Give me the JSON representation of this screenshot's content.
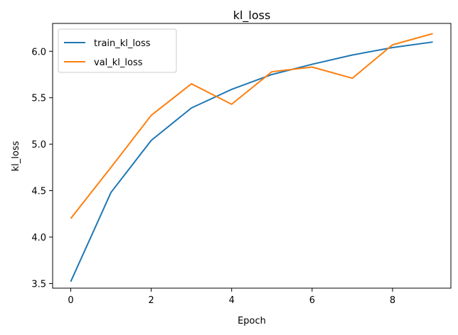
{
  "chart_data": {
    "type": "line",
    "title": "kl_loss",
    "xlabel": "Epoch",
    "ylabel": "kl_loss",
    "xlim": [
      -0.45,
      9.45
    ],
    "ylim": [
      3.45,
      6.3
    ],
    "xticks": [
      0,
      2,
      4,
      6,
      8
    ],
    "xtick_labels": [
      "0",
      "2",
      "4",
      "6",
      "8"
    ],
    "yticks": [
      3.5,
      4.0,
      4.5,
      5.0,
      5.5,
      6.0
    ],
    "ytick_labels": [
      "3.5",
      "4.0",
      "4.5",
      "5.0",
      "5.5",
      "6.0"
    ],
    "grid": false,
    "legend_position": "upper-left",
    "x": [
      0,
      1,
      2,
      3,
      4,
      5,
      6,
      7,
      8,
      9
    ],
    "series": [
      {
        "name": "train_kl_loss",
        "color": "#1f77b4",
        "values": [
          3.52,
          4.48,
          5.04,
          5.39,
          5.59,
          5.75,
          5.86,
          5.96,
          6.04,
          6.1
        ]
      },
      {
        "name": "val_kl_loss",
        "color": "#ff7f0e",
        "values": [
          4.2,
          4.75,
          5.31,
          5.65,
          5.43,
          5.78,
          5.83,
          5.71,
          6.07,
          6.19
        ]
      }
    ]
  }
}
